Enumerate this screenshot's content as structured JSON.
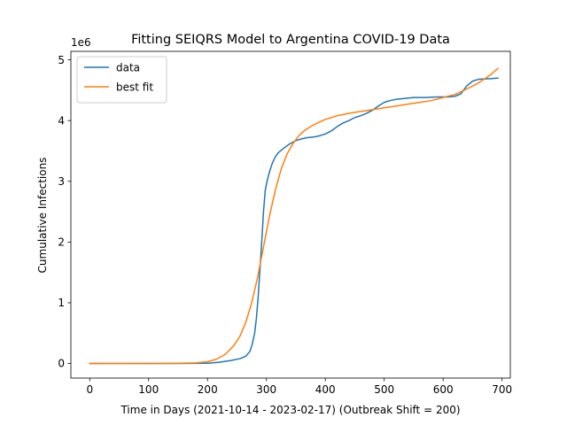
{
  "chart_data": {
    "type": "line",
    "title": "Fitting SEIQRS Model to Argentina COVID-19 Data",
    "xlabel": "Time in Days (2021-10-14 - 2023-02-17) (Outbreak Shift = 200)",
    "ylabel": "Cumulative Infections",
    "y_offset_label": "1e6",
    "xlim": [
      -32,
      714
    ],
    "ylim": [
      -0.24,
      5.14
    ],
    "xticks": [
      0,
      100,
      200,
      300,
      400,
      500,
      600,
      700
    ],
    "xtick_labels": [
      "0",
      "100",
      "200",
      "300",
      "400",
      "500",
      "600",
      "700"
    ],
    "yticks": [
      0,
      1,
      2,
      3,
      4,
      5
    ],
    "ytick_labels": [
      "0",
      "1",
      "2",
      "3",
      "4",
      "5"
    ],
    "grid": false,
    "legend_position": "upper-left",
    "series": [
      {
        "name": "data",
        "color": "#1f77b4",
        "x": [
          0,
          100,
          150,
          200,
          220,
          240,
          255,
          265,
          272,
          276,
          280,
          283,
          286,
          289,
          292,
          295,
          298,
          301,
          305,
          310,
          315,
          320,
          330,
          340,
          350,
          360,
          370,
          380,
          390,
          400,
          410,
          420,
          430,
          440,
          450,
          460,
          470,
          480,
          490,
          500,
          510,
          520,
          530,
          550,
          570,
          590,
          610,
          620,
          630,
          640,
          650,
          660,
          680,
          693
        ],
        "y": [
          0,
          0,
          0,
          0.005,
          0.02,
          0.05,
          0.08,
          0.12,
          0.2,
          0.32,
          0.5,
          0.75,
          1.1,
          1.55,
          2.0,
          2.5,
          2.85,
          3.0,
          3.15,
          3.3,
          3.4,
          3.47,
          3.55,
          3.62,
          3.67,
          3.7,
          3.72,
          3.73,
          3.75,
          3.78,
          3.83,
          3.9,
          3.96,
          4.0,
          4.05,
          4.08,
          4.12,
          4.17,
          4.24,
          4.3,
          4.33,
          4.35,
          4.36,
          4.38,
          4.38,
          4.39,
          4.39,
          4.4,
          4.44,
          4.57,
          4.65,
          4.68,
          4.69,
          4.7
        ]
      },
      {
        "name": "best fit",
        "color": "#ff7f0e",
        "x": [
          0,
          100,
          150,
          180,
          200,
          215,
          230,
          245,
          255,
          265,
          275,
          285,
          295,
          305,
          315,
          325,
          335,
          345,
          355,
          365,
          380,
          400,
          420,
          440,
          460,
          480,
          500,
          520,
          540,
          560,
          580,
          600,
          620,
          640,
          660,
          680,
          693
        ],
        "y": [
          0,
          0,
          0.005,
          0.01,
          0.03,
          0.07,
          0.15,
          0.3,
          0.45,
          0.68,
          1.0,
          1.42,
          1.92,
          2.42,
          2.85,
          3.2,
          3.45,
          3.62,
          3.75,
          3.84,
          3.93,
          4.02,
          4.08,
          4.12,
          4.15,
          4.18,
          4.21,
          4.24,
          4.27,
          4.3,
          4.33,
          4.38,
          4.43,
          4.52,
          4.62,
          4.75,
          4.86
        ]
      }
    ]
  }
}
